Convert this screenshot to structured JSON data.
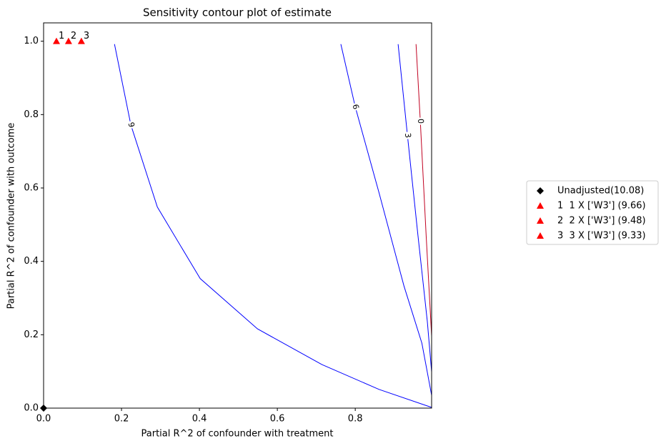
{
  "chart_data": {
    "type": "contour",
    "title": "Sensitivity contour plot of estimate",
    "x_label": "Partial R^2 of confounder with treatment",
    "y_label": "Partial R^2 of confounder with outcome",
    "xlim": [
      0,
      0.996
    ],
    "ylim": [
      0,
      1.05
    ],
    "xticks": [
      {
        "value": 0,
        "label": "0.0"
      },
      {
        "value": 0.2,
        "label": "0.2"
      },
      {
        "value": 0.4,
        "label": "0.4"
      },
      {
        "value": 0.6,
        "label": "0.6"
      },
      {
        "value": 0.8,
        "label": "0.8"
      }
    ],
    "yticks": [
      {
        "value": 0,
        "label": "0.0"
      },
      {
        "value": 0.2,
        "label": "0.2"
      },
      {
        "value": 0.4,
        "label": "0.4"
      },
      {
        "value": 0.6,
        "label": "0.6"
      },
      {
        "value": 0.8,
        "label": "0.8"
      },
      {
        "value": 1,
        "label": "1.0"
      }
    ],
    "contours": [
      {
        "level": 9,
        "color": "#0000ff",
        "x": [
          0.182,
          0.224,
          0.292,
          0.402,
          0.549,
          0.714,
          0.861,
          0.996
        ],
        "y": [
          0.992,
          0.772,
          0.548,
          0.353,
          0.216,
          0.119,
          0.051,
          0.002
        ]
      },
      {
        "level": 6,
        "color": "#0000ff",
        "x": [
          0.763,
          0.8,
          0.861,
          0.925,
          0.971,
          0.996
        ],
        "y": [
          0.992,
          0.821,
          0.587,
          0.333,
          0.177,
          0.035
        ]
      },
      {
        "level": 3,
        "color": "#0000ff",
        "x": [
          0.91,
          0.934,
          0.961,
          0.985,
          0.996
        ],
        "y": [
          0.992,
          0.743,
          0.47,
          0.236,
          0.099
        ]
      },
      {
        "level": 0,
        "color": "#c00020",
        "x": [
          0.956,
          0.967,
          0.982,
          0.996
        ],
        "y": [
          0.992,
          0.782,
          0.47,
          0.197
        ]
      }
    ],
    "points": [
      {
        "name": "Unadjusted(10.08)",
        "marker": "diamond",
        "color": "#000000",
        "x": 0,
        "y": 0
      },
      {
        "name": "1  1 X ['W3'] (9.66)",
        "annotation": "1",
        "marker": "triangle",
        "color": "#ff0000",
        "x": 0.033,
        "y": 1
      },
      {
        "name": "2  2 X ['W3'] (9.48)",
        "annotation": "2",
        "marker": "triangle",
        "color": "#ff0000",
        "x": 0.064,
        "y": 1
      },
      {
        "name": "3  3 X ['W3'] (9.33)",
        "annotation": "3",
        "marker": "triangle",
        "color": "#ff0000",
        "x": 0.097,
        "y": 1
      }
    ]
  }
}
